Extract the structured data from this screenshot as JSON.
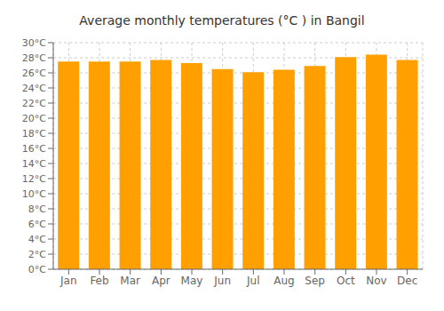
{
  "chart_data": {
    "type": "bar",
    "title": "Average monthly temperatures (°C ) in Bangil",
    "categories": [
      "Jan",
      "Feb",
      "Mar",
      "Apr",
      "May",
      "Jun",
      "Jul",
      "Aug",
      "Sep",
      "Oct",
      "Nov",
      "Dec"
    ],
    "values": [
      27.5,
      27.5,
      27.5,
      27.7,
      27.3,
      26.5,
      26.1,
      26.4,
      26.9,
      28.1,
      28.4,
      27.7
    ],
    "color": "#FFA000",
    "ylim": [
      0,
      30
    ],
    "yticks": [
      {
        "value": 0,
        "label": "0°C"
      },
      {
        "value": 2,
        "label": "2°C"
      },
      {
        "value": 4,
        "label": "4°C"
      },
      {
        "value": 6,
        "label": "6°C"
      },
      {
        "value": 8,
        "label": "8°C"
      },
      {
        "value": 10,
        "label": "10°C"
      },
      {
        "value": 12,
        "label": "12°C"
      },
      {
        "value": 14,
        "label": "14°C"
      },
      {
        "value": 16,
        "label": "16°C"
      },
      {
        "value": 18,
        "label": "18°C"
      },
      {
        "value": 20,
        "label": "20°C"
      },
      {
        "value": 22,
        "label": "22°C"
      },
      {
        "value": 24,
        "label": "24°C"
      },
      {
        "value": 26,
        "label": "26°C"
      },
      {
        "value": 28,
        "label": "28°C"
      },
      {
        "value": 30,
        "label": "30°C"
      }
    ],
    "grid": true
  }
}
